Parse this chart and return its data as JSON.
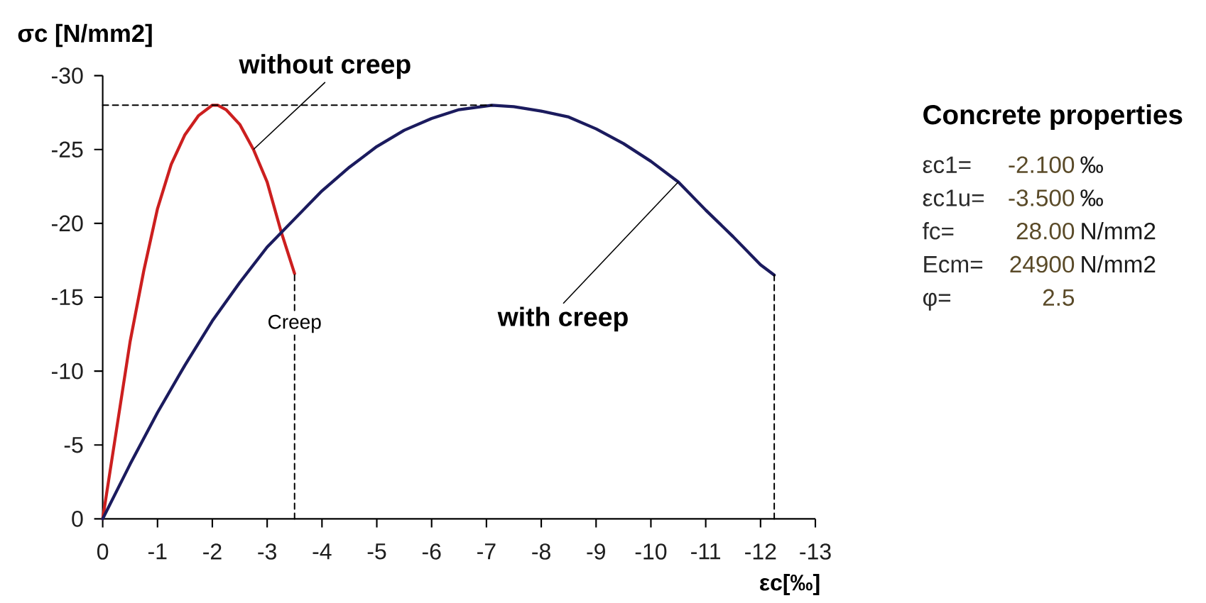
{
  "chart_data": [
    {
      "type": "line",
      "ylabel": "σc [N/mm2]",
      "xlabel": "εc[‰]",
      "xlim": [
        0,
        -13
      ],
      "xticks": [
        0,
        -1,
        -2,
        -3,
        -4,
        -5,
        -6,
        -7,
        -8,
        -9,
        -10,
        -11,
        -12,
        -13
      ],
      "ylim": [
        0,
        -30
      ],
      "yticks": [
        0,
        -5,
        -10,
        -15,
        -20,
        -25,
        -30
      ],
      "series": [
        {
          "color": "#cc1f1f",
          "x": [
            0,
            -0.25,
            -0.5,
            -0.75,
            -1,
            -1.25,
            -1.5,
            -1.75,
            -2,
            -2.1,
            -2.25,
            -2.5,
            -2.75,
            -3,
            -3.25,
            -3.5
          ],
          "values": [
            0,
            -6,
            -12,
            -16.8,
            -21,
            -24,
            -26,
            -27.3,
            -28,
            -28,
            -27.7,
            -26.7,
            -25,
            -22.8,
            -19.5,
            -16.6
          ]
        },
        {
          "color": "#1b1b5e",
          "x": [
            0,
            -0.5,
            -1,
            -1.5,
            -2,
            -2.5,
            -3,
            -3.5,
            -4,
            -4.5,
            -5,
            -5.5,
            -6,
            -6.5,
            -7.1,
            -7.5,
            -8,
            -8.5,
            -9,
            -9.5,
            -10,
            -10.5,
            -11,
            -11.5,
            -12,
            -12.25
          ],
          "values": [
            0,
            -3.7,
            -7.2,
            -10.4,
            -13.4,
            -16,
            -18.4,
            -20.3,
            -22.2,
            -23.8,
            -25.2,
            -26.3,
            -27.1,
            -27.7,
            -28,
            -27.9,
            -27.6,
            -27.2,
            -26.4,
            -25.4,
            -24.2,
            -22.8,
            -20.9,
            -19.1,
            -17.2,
            -16.5
          ]
        },
        {
          "color": "#000000",
          "line_style": "dashed",
          "x": [
            0,
            -7.1
          ],
          "values": [
            -28,
            -28
          ]
        },
        {
          "color": "#000000",
          "line_style": "dashed",
          "x": [
            -3.5,
            -3.5
          ],
          "values": [
            0,
            -16.6
          ]
        },
        {
          "color": "#000000",
          "line_style": "dashed",
          "x": [
            -12.25,
            -12.25
          ],
          "values": [
            0,
            -16.5
          ]
        }
      ],
      "annotations": [
        {
          "text": "without creep",
          "x": -2.75,
          "y": -25
        },
        {
          "text": "with creep",
          "x": -10.5,
          "y": -22.8
        },
        {
          "text": "Creep",
          "x": -3.5,
          "y": -13.2
        }
      ]
    },
    {
      "type": "other",
      "title": "Concrete properties",
      "annotations": [
        "εc1=",
        "-2.100",
        "‰",
        "εc1u=",
        "-3.500",
        "‰",
        "fc=",
        "28.00",
        "N/mm2",
        "Ecm=",
        "24900",
        "N/mm2",
        "φ=",
        "2.5"
      ]
    }
  ]
}
